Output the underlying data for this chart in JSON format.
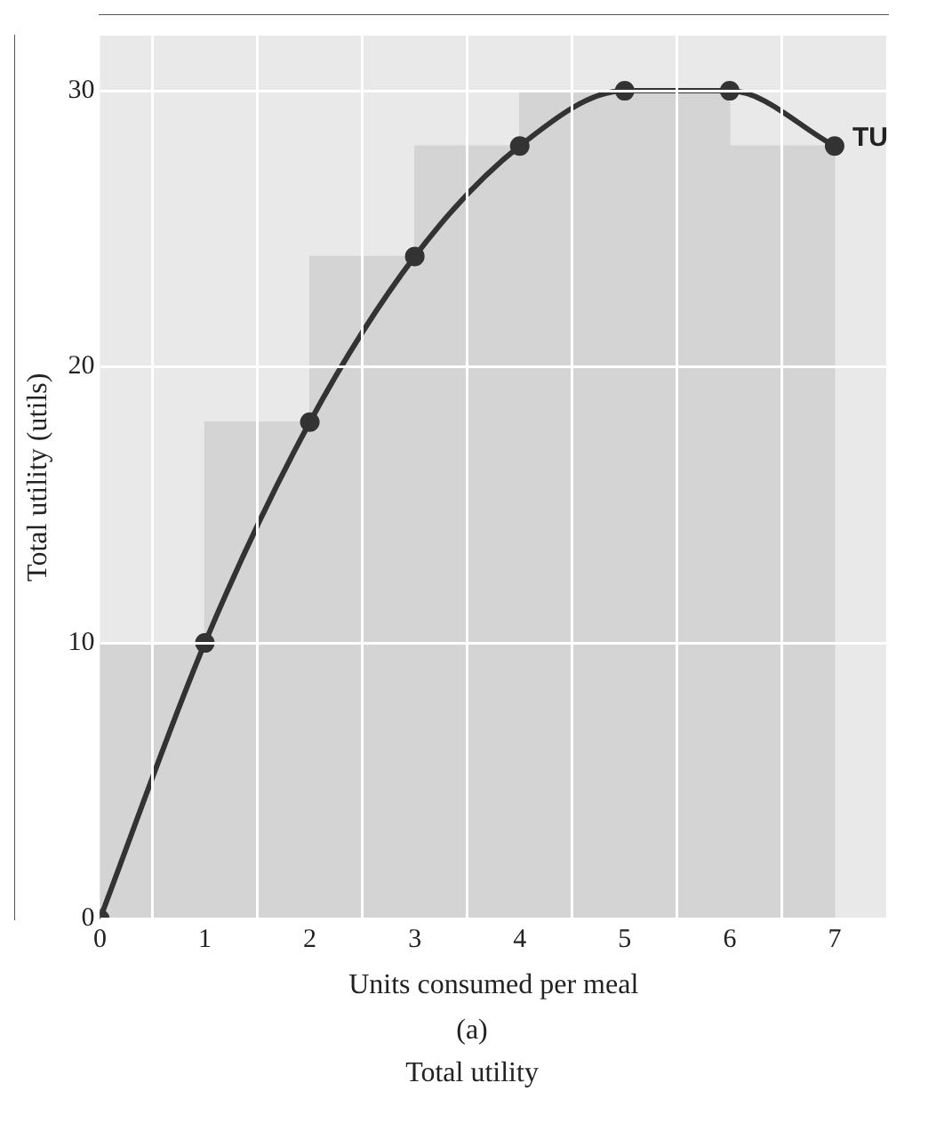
{
  "chart_data": {
    "type": "line",
    "xlabel": "Units consumed per meal",
    "ylabel": "Total utility (utils)",
    "x": [
      0,
      1,
      2,
      3,
      4,
      5,
      6,
      7
    ],
    "series": [
      {
        "type": "bar",
        "color": "#d4d4d4",
        "x": [
          0.5,
          1.5,
          2.5,
          3.5,
          4.5,
          5.5,
          6.5
        ],
        "values": [
          10,
          18,
          24,
          28,
          30,
          30,
          28
        ]
      },
      {
        "name": "TU",
        "color": "#333333",
        "values": [
          0,
          10,
          18,
          24,
          28,
          30,
          30,
          28
        ]
      }
    ],
    "xlim": [
      0,
      7.5
    ],
    "xticks": [
      0,
      1,
      2,
      3,
      4,
      5,
      6,
      7
    ],
    "ylim": [
      0,
      32
    ],
    "yticks": [
      0,
      10,
      20,
      30
    ],
    "grid": true,
    "marker": "circle",
    "line_style": "solid",
    "annotations": [
      "(a)",
      "Total utility"
    ]
  }
}
